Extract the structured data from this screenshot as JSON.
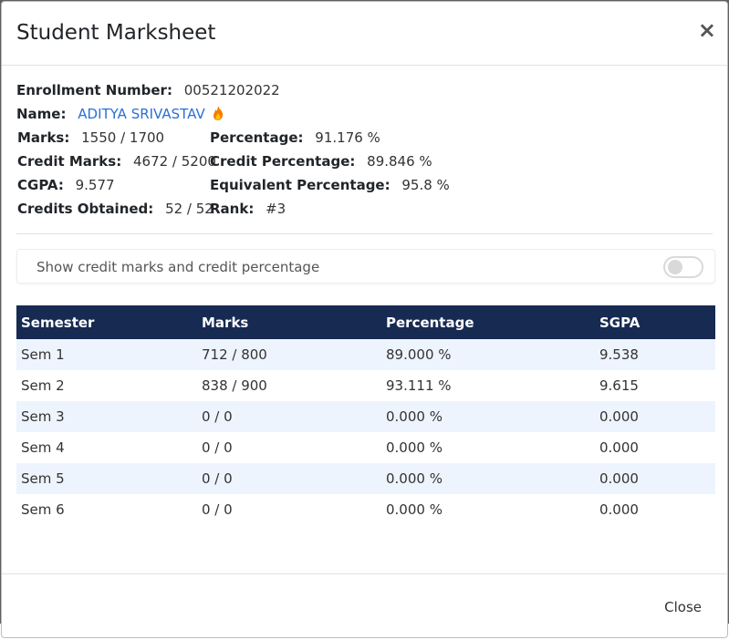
{
  "modal": {
    "title": "Student Marksheet",
    "close_icon": "×",
    "close_label": "Close"
  },
  "info": {
    "enrollment_label": "Enrollment Number:",
    "enrollment_value": "00521202022",
    "name_label": "Name:",
    "name_value": "ADITYA SRIVASTAV",
    "name_icon": "fire-icon",
    "marks_label": "Marks:",
    "marks_value": "1550 / 1700",
    "percentage_label": "Percentage:",
    "percentage_value": "91.176 %",
    "credit_marks_label": "Credit Marks:",
    "credit_marks_value": "4672 / 5200",
    "credit_percentage_label": "Credit Percentage:",
    "credit_percentage_value": "89.846 %",
    "cgpa_label": "CGPA:",
    "cgpa_value": "9.577",
    "equiv_percentage_label": "Equivalent Percentage:",
    "equiv_percentage_value": "95.8 %",
    "credits_obtained_label": "Credits Obtained:",
    "credits_obtained_value": "52 / 52",
    "rank_label": "Rank:",
    "rank_value": "#3"
  },
  "toggle": {
    "label": "Show credit marks and credit percentage",
    "checked": false
  },
  "table": {
    "headers": [
      "Semester",
      "Marks",
      "Percentage",
      "SGPA"
    ],
    "rows": [
      [
        "Sem 1",
        "712 / 800",
        "89.000 %",
        "9.538"
      ],
      [
        "Sem 2",
        "838 / 900",
        "93.111 %",
        "9.615"
      ],
      [
        "Sem 3",
        "0 / 0",
        "0.000 %",
        "0.000"
      ],
      [
        "Sem 4",
        "0 / 0",
        "0.000 %",
        "0.000"
      ],
      [
        "Sem 5",
        "0 / 0",
        "0.000 %",
        "0.000"
      ],
      [
        "Sem 6",
        "0 / 0",
        "0.000 %",
        "0.000"
      ]
    ]
  },
  "colors": {
    "header_bg": "#162a52",
    "row_alt_bg": "#eef4fd",
    "link": "#2a6fd6"
  }
}
